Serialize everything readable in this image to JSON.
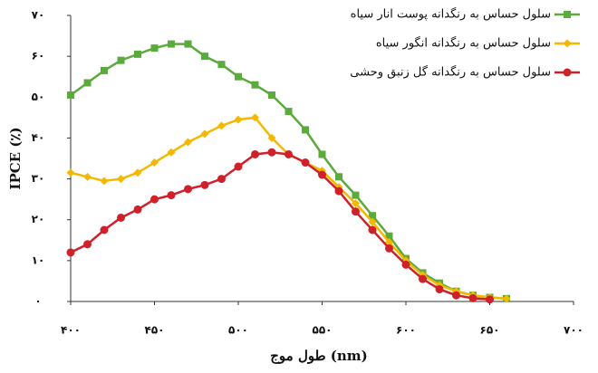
{
  "chart_data": {
    "type": "line",
    "xlabel": "طول موج (nm)",
    "ylabel": "IPCE (٪)",
    "x": [
      400,
      410,
      420,
      430,
      440,
      450,
      460,
      470,
      480,
      490,
      500,
      510,
      520,
      530,
      540,
      550,
      560,
      570,
      580,
      590,
      600,
      610,
      620,
      630,
      640,
      650,
      660
    ],
    "series": [
      {
        "name": "سلول حساس به رنگدانه پوست انار سیاه",
        "color": "#5aaa3c",
        "marker": "square",
        "values": [
          50.5,
          53.5,
          56.5,
          59,
          60.5,
          62,
          63,
          63,
          60,
          58,
          55,
          53,
          50.5,
          46.5,
          42,
          36,
          30.5,
          26,
          21,
          16,
          10.5,
          7,
          4.5,
          2.5,
          1.5,
          1,
          0.7
        ]
      },
      {
        "name": "سلول حساس به رنگدانه انگور سیاه",
        "color": "#f5b800",
        "marker": "diamond",
        "values": [
          31.5,
          30.5,
          29.5,
          30,
          31.5,
          34,
          36.5,
          39,
          41,
          43,
          44.5,
          45,
          40,
          36,
          34,
          32,
          28,
          24,
          19.5,
          14.5,
          10,
          6.5,
          4,
          2.5,
          1.5,
          1,
          0.7
        ]
      },
      {
        "name": "سلول حساس به رنگدانه گل زنبق وحشی",
        "color": "#d0202a",
        "marker": "circle",
        "values": [
          12,
          14,
          17.5,
          20.5,
          22.5,
          25,
          26,
          27.5,
          28.5,
          30,
          33,
          36,
          36.5,
          36,
          34,
          31,
          27,
          22,
          17.5,
          13,
          9,
          5.5,
          3,
          1.5,
          0.8,
          0.5,
          null
        ]
      }
    ],
    "xlim": [
      400,
      700
    ],
    "xticks": [
      {
        "value": 400,
        "label": "۴۰۰"
      },
      {
        "value": 450,
        "label": "۴۵۰"
      },
      {
        "value": 500,
        "label": "۵۰۰"
      },
      {
        "value": 550,
        "label": "۵۵۰"
      },
      {
        "value": 600,
        "label": "۶۰۰"
      },
      {
        "value": 650,
        "label": "۶۵۰"
      },
      {
        "value": 700,
        "label": "۷۰۰"
      }
    ],
    "ylim": [
      0,
      70
    ],
    "yticks": [
      {
        "value": 0,
        "label": "۰"
      },
      {
        "value": 10,
        "label": "۱۰"
      },
      {
        "value": 20,
        "label": "۲۰"
      },
      {
        "value": 30,
        "label": "۳۰"
      },
      {
        "value": 40,
        "label": "۴۰"
      },
      {
        "value": 50,
        "label": "۵۰"
      },
      {
        "value": 60,
        "label": "۶۰"
      },
      {
        "value": 70,
        "label": "۷۰"
      }
    ],
    "legend": "top-right"
  }
}
